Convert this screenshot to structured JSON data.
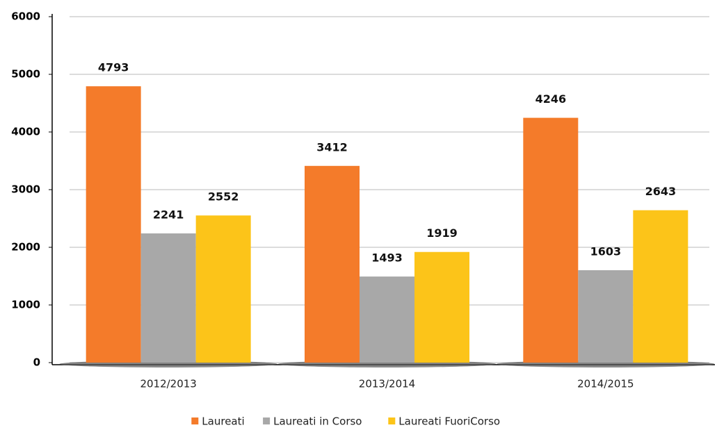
{
  "chart_data": {
    "type": "bar",
    "categories": [
      "2012/2013",
      "2013/2014",
      "2014/2015"
    ],
    "series": [
      {
        "name": "Laureati",
        "color": "#f47b2a",
        "values": [
          4793,
          3412,
          4246
        ]
      },
      {
        "name": "Laureati in Corso",
        "color": "#a8a8a8",
        "values": [
          2241,
          1493,
          1603
        ]
      },
      {
        "name": "Laureati FuoriCorso",
        "color": "#fcc419",
        "values": [
          2552,
          1919,
          2643
        ]
      }
    ],
    "ylim": [
      0,
      6000
    ],
    "yticks": [
      0,
      1000,
      2000,
      3000,
      4000,
      5000,
      6000
    ],
    "grid": true,
    "legend": "bottom"
  }
}
